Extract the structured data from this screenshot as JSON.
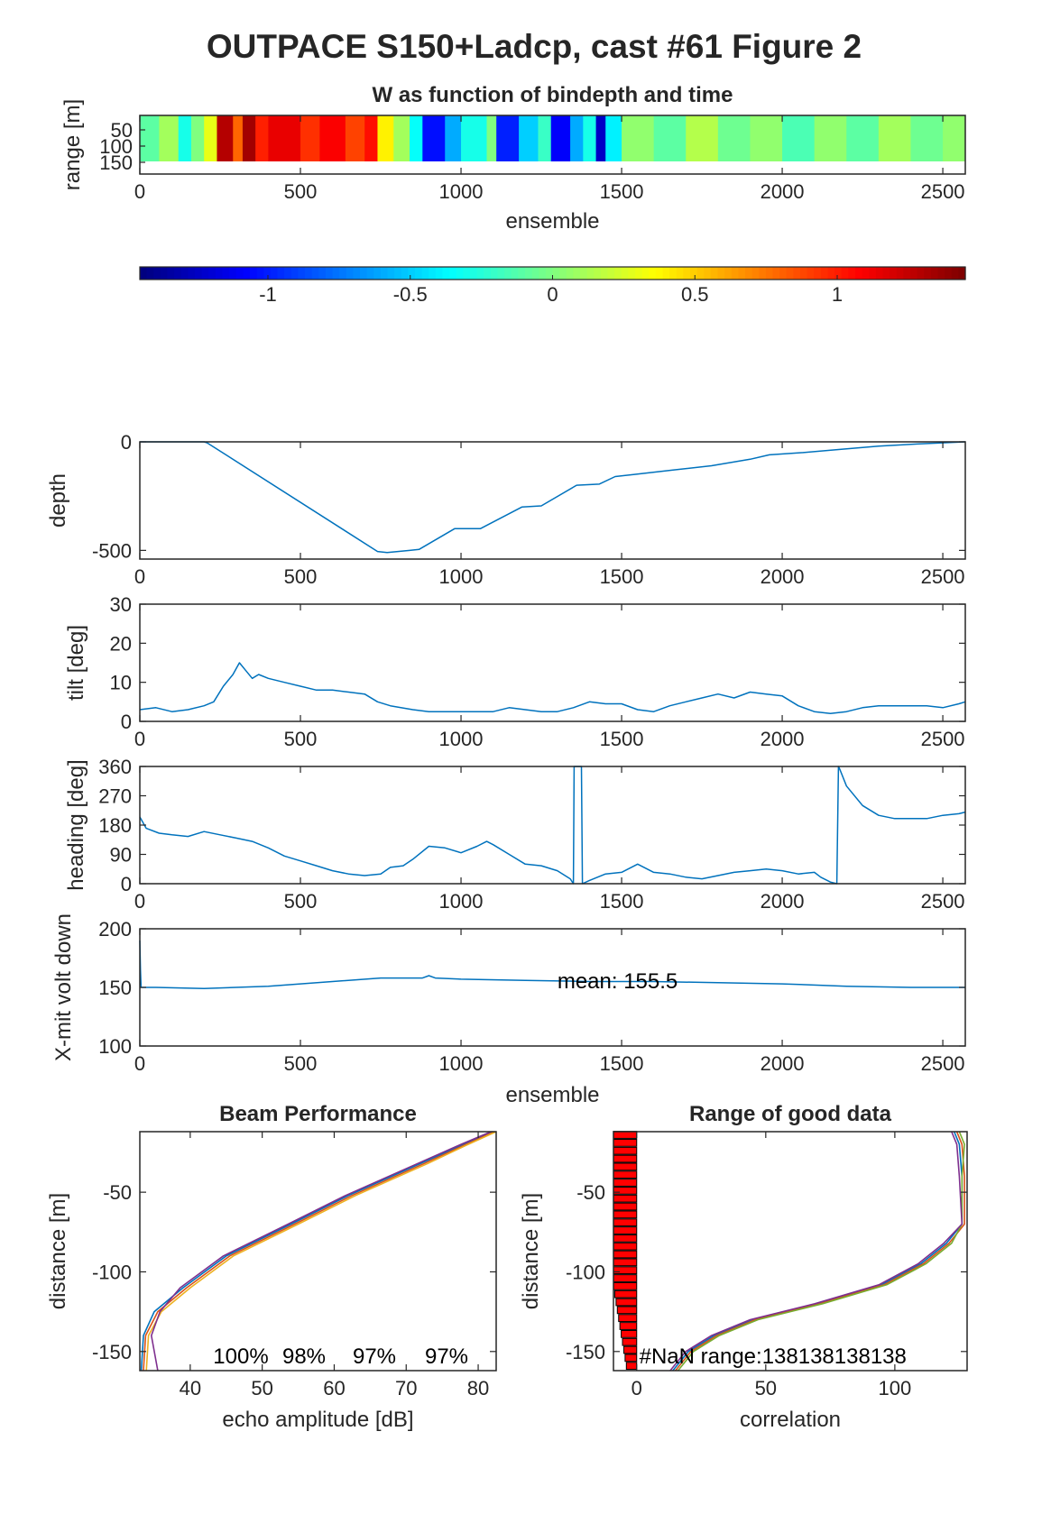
{
  "figure_title": "OUTPACE S150+Ladcp, cast #61 Figure 2",
  "chart_data": [
    {
      "id": "w_image",
      "type": "heatmap",
      "title": "W as function of bindepth and time",
      "xlabel": "ensemble",
      "ylabel": "range [m]",
      "xlim": [
        0,
        2570
      ],
      "xticks": [
        "0",
        "500",
        "1000",
        "1500",
        "2000",
        "2500"
      ],
      "yticks": [
        "50",
        "100",
        "150"
      ],
      "colormap": "jet",
      "value_range": [
        -1.45,
        1.45
      ],
      "colorbar_ticks": [
        "-1",
        "-0.5",
        "0",
        "0.5",
        "1"
      ],
      "bands": [
        {
          "x0": 0,
          "x1": 60,
          "value": -0.1
        },
        {
          "x0": 60,
          "x1": 120,
          "value": 0.1
        },
        {
          "x0": 120,
          "x1": 160,
          "value": -0.3
        },
        {
          "x0": 160,
          "x1": 200,
          "value": 0.0
        },
        {
          "x0": 200,
          "x1": 240,
          "value": 0.3
        },
        {
          "x0": 240,
          "x1": 290,
          "value": 1.3
        },
        {
          "x0": 290,
          "x1": 320,
          "value": 0.8
        },
        {
          "x0": 320,
          "x1": 360,
          "value": 1.35
        },
        {
          "x0": 360,
          "x1": 400,
          "value": 1.0
        },
        {
          "x0": 400,
          "x1": 500,
          "value": 1.15
        },
        {
          "x0": 500,
          "x1": 560,
          "value": 0.95
        },
        {
          "x0": 560,
          "x1": 640,
          "value": 1.1
        },
        {
          "x0": 640,
          "x1": 700,
          "value": 0.9
        },
        {
          "x0": 700,
          "x1": 740,
          "value": 1.05
        },
        {
          "x0": 740,
          "x1": 790,
          "value": 0.4
        },
        {
          "x0": 790,
          "x1": 840,
          "value": 0.1
        },
        {
          "x0": 840,
          "x1": 880,
          "value": -0.35
        },
        {
          "x0": 880,
          "x1": 950,
          "value": -1.05
        },
        {
          "x0": 950,
          "x1": 1000,
          "value": -0.6
        },
        {
          "x0": 1000,
          "x1": 1080,
          "value": -0.3
        },
        {
          "x0": 1080,
          "x1": 1110,
          "value": 0.0
        },
        {
          "x0": 1110,
          "x1": 1180,
          "value": -1.0
        },
        {
          "x0": 1180,
          "x1": 1240,
          "value": -0.5
        },
        {
          "x0": 1240,
          "x1": 1280,
          "value": -0.2
        },
        {
          "x0": 1280,
          "x1": 1340,
          "value": -1.1
        },
        {
          "x0": 1340,
          "x1": 1380,
          "value": -0.6
        },
        {
          "x0": 1380,
          "x1": 1420,
          "value": -0.3
        },
        {
          "x0": 1420,
          "x1": 1450,
          "value": -1.25
        },
        {
          "x0": 1450,
          "x1": 1500,
          "value": -0.4
        },
        {
          "x0": 1500,
          "x1": 1600,
          "value": 0.05
        },
        {
          "x0": 1600,
          "x1": 1700,
          "value": -0.1
        },
        {
          "x0": 1700,
          "x1": 1800,
          "value": 0.15
        },
        {
          "x0": 1800,
          "x1": 1900,
          "value": -0.05
        },
        {
          "x0": 1900,
          "x1": 2000,
          "value": 0.05
        },
        {
          "x0": 2000,
          "x1": 2100,
          "value": -0.15
        },
        {
          "x0": 2100,
          "x1": 2200,
          "value": 0.05
        },
        {
          "x0": 2200,
          "x1": 2300,
          "value": -0.1
        },
        {
          "x0": 2300,
          "x1": 2400,
          "value": 0.1
        },
        {
          "x0": 2400,
          "x1": 2500,
          "value": -0.05
        },
        {
          "x0": 2500,
          "x1": 2570,
          "value": 0.05
        }
      ]
    },
    {
      "id": "depth",
      "type": "line",
      "ylabel": "depth",
      "xlim": [
        0,
        2570
      ],
      "ylim": [
        -540,
        0
      ],
      "xticks": [
        "0",
        "500",
        "1000",
        "1500",
        "2000",
        "2500"
      ],
      "yticks": [
        "0",
        "-500"
      ],
      "x": [
        0,
        200,
        210,
        740,
        770,
        840,
        870,
        980,
        1060,
        1190,
        1250,
        1360,
        1430,
        1480,
        1540,
        1660,
        1780,
        1900,
        1960,
        2060,
        2180,
        2300,
        2420,
        2570
      ],
      "y": [
        0,
        0,
        -5,
        -505,
        -510,
        -500,
        -495,
        -400,
        -400,
        -300,
        -295,
        -200,
        -195,
        -160,
        -150,
        -130,
        -110,
        -80,
        -60,
        -50,
        -35,
        -20,
        -10,
        0
      ]
    },
    {
      "id": "tilt",
      "type": "line",
      "ylabel": "tilt [deg]",
      "xlim": [
        0,
        2570
      ],
      "ylim": [
        0,
        30
      ],
      "xticks": [
        "0",
        "500",
        "1000",
        "1500",
        "2000",
        "2500"
      ],
      "yticks": [
        "0",
        "10",
        "20",
        "30"
      ],
      "x": [
        0,
        50,
        100,
        150,
        200,
        230,
        260,
        290,
        310,
        330,
        350,
        370,
        400,
        450,
        500,
        550,
        600,
        650,
        700,
        740,
        780,
        850,
        900,
        1000,
        1100,
        1150,
        1200,
        1250,
        1300,
        1350,
        1400,
        1450,
        1500,
        1550,
        1600,
        1650,
        1700,
        1750,
        1800,
        1850,
        1900,
        1950,
        2000,
        2050,
        2100,
        2150,
        2200,
        2250,
        2300,
        2350,
        2400,
        2450,
        2500,
        2550,
        2570
      ],
      "y": [
        3,
        3.5,
        2.5,
        3,
        4,
        5,
        9,
        12,
        15,
        13,
        11,
        12,
        11,
        10,
        9,
        8,
        8,
        7.5,
        7,
        5,
        4,
        3,
        2.5,
        2.5,
        2.5,
        3.5,
        3,
        2.5,
        2.5,
        3.5,
        5,
        4.5,
        4.5,
        3,
        2.5,
        4,
        5,
        6,
        7,
        6,
        7.5,
        7,
        6.5,
        4,
        2.5,
        2,
        2.5,
        3.5,
        4,
        4,
        4,
        4,
        3.5,
        4.5,
        5
      ]
    },
    {
      "id": "heading",
      "type": "line",
      "ylabel": "heading [deg]",
      "xlim": [
        0,
        2570
      ],
      "ylim": [
        0,
        360
      ],
      "xticks": [
        "0",
        "500",
        "1000",
        "1500",
        "2000",
        "2500"
      ],
      "yticks": [
        "0",
        "90",
        "180",
        "270",
        "360"
      ],
      "x": [
        0,
        20,
        60,
        100,
        150,
        200,
        250,
        300,
        350,
        400,
        450,
        500,
        550,
        600,
        650,
        700,
        750,
        780,
        820,
        850,
        900,
        950,
        1000,
        1050,
        1080,
        1100,
        1150,
        1200,
        1250,
        1300,
        1340,
        1350,
        1352,
        1375,
        1378,
        1400,
        1450,
        1500,
        1550,
        1600,
        1650,
        1700,
        1750,
        1800,
        1850,
        1900,
        1950,
        2000,
        2050,
        2100,
        2120,
        2150,
        2170,
        2175,
        2180,
        2200,
        2250,
        2300,
        2350,
        2400,
        2450,
        2500,
        2550,
        2570
      ],
      "y": [
        205,
        170,
        155,
        150,
        145,
        160,
        150,
        140,
        130,
        110,
        85,
        70,
        55,
        40,
        30,
        25,
        30,
        50,
        55,
        75,
        115,
        110,
        95,
        115,
        130,
        120,
        90,
        60,
        55,
        40,
        15,
        0,
        360,
        360,
        0,
        10,
        30,
        35,
        60,
        35,
        30,
        20,
        15,
        25,
        35,
        40,
        45,
        40,
        30,
        35,
        20,
        5,
        0,
        360,
        350,
        300,
        240,
        210,
        200,
        200,
        200,
        210,
        215,
        220
      ]
    },
    {
      "id": "xmit_volt",
      "type": "line",
      "ylabel": "X-mit volt down",
      "xlabel": "ensemble",
      "xlim": [
        0,
        2570
      ],
      "ylim": [
        100,
        200
      ],
      "xticks": [
        "0",
        "500",
        "1000",
        "1500",
        "2000",
        "2500"
      ],
      "yticks": [
        "100",
        "150",
        "200"
      ],
      "annotation": "mean: 155.5",
      "x": [
        0,
        2,
        4,
        10,
        50,
        200,
        400,
        600,
        750,
        880,
        900,
        920,
        1000,
        1200,
        1400,
        1600,
        1800,
        2000,
        2200,
        2400,
        2570
      ],
      "y": [
        190,
        165,
        150,
        150,
        150,
        149,
        151,
        155,
        158,
        158,
        160,
        158,
        157,
        156,
        155,
        155,
        154,
        153,
        151,
        150,
        150
      ]
    },
    {
      "id": "beam_performance",
      "type": "line",
      "title": "Beam Performance",
      "xlabel": "echo amplitude [dB]",
      "ylabel": "distance [m]",
      "xlim": [
        33,
        82.5
      ],
      "ylim": [
        -162,
        -12
      ],
      "xticks": [
        "40",
        "50",
        "60",
        "70",
        "80"
      ],
      "yticks": [
        "-50",
        "-100",
        "-150"
      ],
      "annotations": [
        "100%",
        "98%",
        "97%",
        "97%"
      ],
      "series": [
        {
          "color": "#0072bd",
          "x": [
            82,
            78,
            72,
            62,
            54,
            45,
            39,
            35,
            33.5,
            33.2
          ],
          "y": [
            -12,
            -20,
            -32,
            -52,
            -70,
            -90,
            -110,
            -125,
            -140,
            -162
          ]
        },
        {
          "color": "#d95319",
          "x": [
            82.3,
            78.3,
            72.5,
            62.5,
            54.5,
            45.5,
            39.5,
            35.5,
            33.8,
            33.5
          ],
          "y": [
            -12,
            -20,
            -32,
            -52,
            -70,
            -90,
            -110,
            -125,
            -140,
            -162
          ]
        },
        {
          "color": "#edb120",
          "x": [
            82.5,
            78.6,
            73,
            63,
            55,
            46,
            40,
            36,
            34.2,
            33.9
          ],
          "y": [
            -12,
            -20,
            -32,
            -52,
            -70,
            -90,
            -110,
            -125,
            -140,
            -162
          ]
        },
        {
          "color": "#7e2f8e",
          "x": [
            81.8,
            77.6,
            71.6,
            61.6,
            53.6,
            44.6,
            38.6,
            35.8,
            34.6,
            35.5
          ],
          "y": [
            -12,
            -20,
            -32,
            -52,
            -70,
            -90,
            -110,
            -125,
            -140,
            -162
          ]
        }
      ]
    },
    {
      "id": "range_good_data",
      "type": "line",
      "title": "Range of good data",
      "xlabel": "correlation",
      "ylabel": "distance [m]",
      "xlim": [
        -9,
        128
      ],
      "ylim": [
        -162,
        -12
      ],
      "xticks": [
        "0",
        "50",
        "100"
      ],
      "yticks": [
        "-50",
        "-100",
        "-150"
      ],
      "annotation": "#NaN range:138138138138",
      "bars": {
        "color": "#ff0000",
        "y": [
          -14,
          -19,
          -24,
          -29,
          -34,
          -39,
          -44,
          -49,
          -54,
          -59,
          -64,
          -69,
          -74,
          -79,
          -84,
          -89,
          -94,
          -99,
          -104,
          -109,
          -114,
          -119,
          -124,
          -129,
          -134,
          -139,
          -144,
          -149,
          -154,
          -159
        ],
        "x_left": [
          -9,
          -9,
          -9,
          -9,
          -9,
          -9,
          -9,
          -9,
          -9,
          -9,
          -9,
          -9,
          -9,
          -9,
          -9,
          -9,
          -9,
          -9,
          -9,
          -9,
          -8.5,
          -8,
          -7.5,
          -7,
          -6.5,
          -6,
          -5.5,
          -5,
          -4.5,
          -4
        ]
      },
      "series": [
        {
          "color": "#0072bd",
          "x": [
            123,
            125,
            126,
            126,
            120,
            110,
            95,
            70,
            45,
            30,
            20,
            14
          ],
          "y": [
            -12,
            -20,
            -40,
            -70,
            -82,
            -95,
            -108,
            -120,
            -130,
            -140,
            -150,
            -162
          ]
        },
        {
          "color": "#d95319",
          "x": [
            124,
            126,
            127,
            127,
            121,
            111,
            96,
            71,
            46,
            31,
            21,
            15
          ],
          "y": [
            -12,
            -20,
            -40,
            -70,
            -82,
            -95,
            -108,
            -120,
            -130,
            -140,
            -150,
            -162
          ]
        },
        {
          "color": "#77ac30",
          "x": [
            125,
            127,
            126,
            126,
            122,
            112,
            97,
            72,
            47,
            32,
            22,
            16
          ],
          "y": [
            -12,
            -20,
            -40,
            -70,
            -82,
            -95,
            -108,
            -120,
            -130,
            -140,
            -150,
            -162
          ]
        },
        {
          "color": "#7e2f8e",
          "x": [
            122,
            124,
            125,
            126,
            119,
            109,
            94,
            69,
            44,
            29,
            19,
            13
          ],
          "y": [
            -12,
            -20,
            -40,
            -70,
            -82,
            -95,
            -108,
            -120,
            -130,
            -140,
            -150,
            -162
          ]
        }
      ]
    }
  ]
}
